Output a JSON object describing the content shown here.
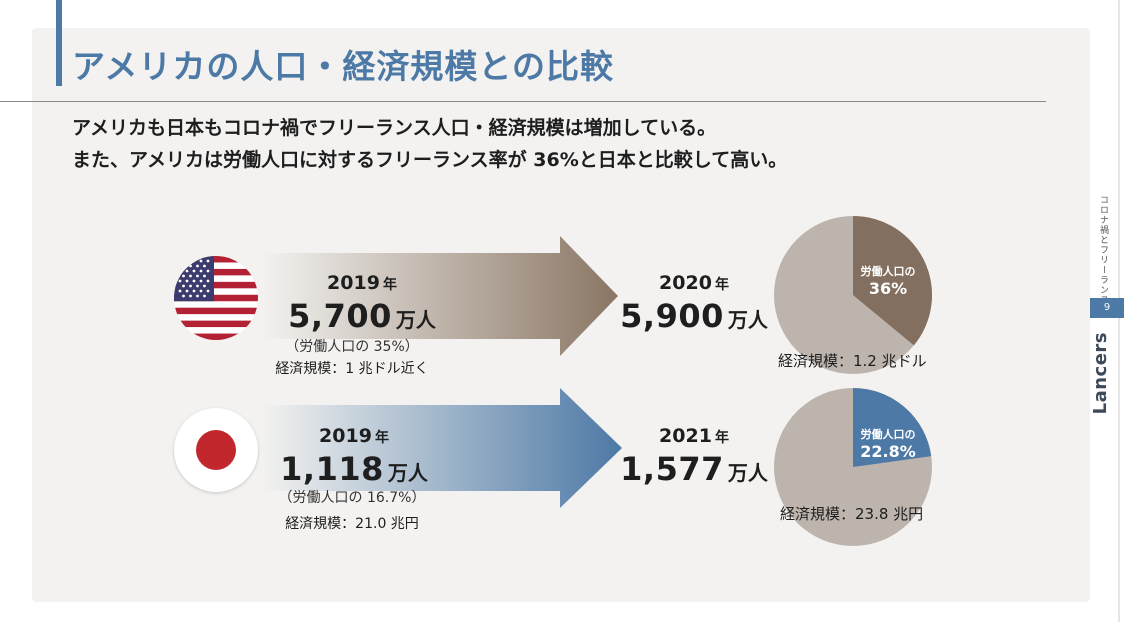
{
  "title": "アメリカの人口・経済規模との比較",
  "subtitle": {
    "line1": "アメリカも日本もコロナ禍でフリーランス人口・経済規模は増加している。",
    "line2": "また、アメリカは労働人口に対するフリーランス率が 36%と日本と比較して高い。"
  },
  "sidebar": {
    "caption": "コロナ禍とフリーランス",
    "page_number": "9",
    "brand": "Lancers"
  },
  "colors": {
    "accent": "#4d79a6",
    "us_slice": "#826f5f",
    "pie_rest": "#bcb4ad",
    "us_arrow": "#8a7664",
    "jp_arrow": "#4d79a6"
  },
  "usa": {
    "flag_icon": "us-flag-icon",
    "before": {
      "year": "2019",
      "year_unit": "年",
      "population": "5,700",
      "population_unit": "万人",
      "labor_share": "（労働人口の 35%）",
      "economy": "経済規模：1 兆ドル近く"
    },
    "after": {
      "year": "2020",
      "year_unit": "年",
      "population": "5,900",
      "population_unit": "万人"
    },
    "pie": {
      "label": "労働人口の",
      "share_text": "36%",
      "share": 0.36,
      "economy": "経済規模：1.2 兆ドル"
    }
  },
  "japan": {
    "flag_icon": "jp-flag-icon",
    "before": {
      "year": "2019",
      "year_unit": "年",
      "population": "1,118",
      "population_unit": "万人",
      "labor_share": "（労働人口の 16.7%）",
      "economy": "経済規模：21.0 兆円"
    },
    "after": {
      "year": "2021",
      "year_unit": "年",
      "population": "1,577",
      "population_unit": "万人"
    },
    "pie": {
      "label": "労働人口の",
      "share_text": "22.8%",
      "share": 0.228,
      "economy": "経済規模：23.8 兆円"
    }
  }
}
